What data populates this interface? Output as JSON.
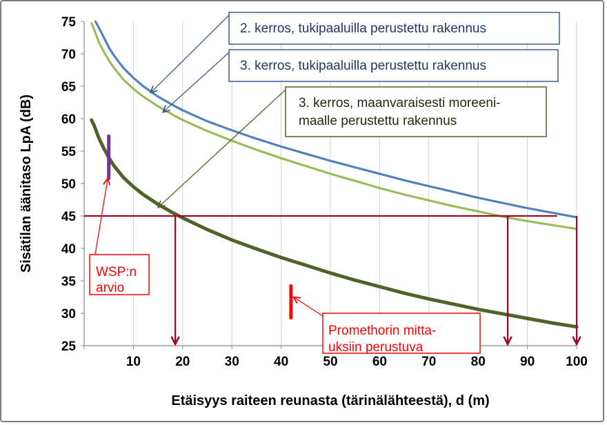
{
  "chart_data": {
    "type": "line",
    "xlabel": "Etäisyys raiteen reunasta (tärinälähteestä), d (m)",
    "ylabel": "Sisätilan äänitaso LpA (dB)",
    "xlim": [
      0,
      100
    ],
    "ylim": [
      25,
      75
    ],
    "x_ticks": [
      "10",
      "20",
      "30",
      "40",
      "50",
      "60",
      "70",
      "80",
      "90",
      "100"
    ],
    "y_ticks": [
      "25",
      "30",
      "35",
      "40",
      "45",
      "50",
      "55",
      "60",
      "65",
      "70",
      "75"
    ],
    "grid": "vertical",
    "series": [
      {
        "name": "2. kerros, tukipaaluilla  perustettu rakennus",
        "color": "#4f81bd",
        "x": [
          2.3,
          3,
          4,
          5,
          6,
          8,
          10,
          12,
          15,
          18,
          20,
          25,
          30,
          35,
          40,
          45,
          50,
          55,
          60,
          65,
          70,
          75,
          80,
          85,
          90,
          95,
          100
        ],
        "y": [
          75,
          74,
          72.5,
          71,
          69.8,
          67.8,
          66.3,
          65,
          63.4,
          62.1,
          61.3,
          59.6,
          58.2,
          56.9,
          55.7,
          54.6,
          53.5,
          52.5,
          51.5,
          50.5,
          49.6,
          48.7,
          47.8,
          47,
          46.2,
          45.5,
          44.8
        ]
      },
      {
        "name": "3. kerros, tukipaaluilla  perustettu rakennus",
        "color": "#9bbb59",
        "x": [
          1.5,
          2,
          3,
          4,
          5,
          6,
          8,
          10,
          12,
          15,
          18,
          20,
          25,
          30,
          35,
          40,
          45,
          50,
          55,
          60,
          65,
          70,
          75,
          80,
          85,
          90,
          95,
          100
        ],
        "y": [
          74.7,
          73.8,
          71.8,
          70.3,
          69,
          67.9,
          66,
          64.6,
          63.4,
          61.9,
          60.6,
          59.8,
          58.1,
          56.6,
          55.2,
          53.9,
          52.7,
          51.5,
          50.4,
          49.3,
          48.3,
          47.4,
          46.5,
          45.7,
          44.9,
          44.2,
          43.6,
          43
        ]
      },
      {
        "name": "3. kerros, maanvaraisesti moreeni-maalle perustettu rakennus",
        "color": "#4f6228",
        "x": [
          1.5,
          2,
          3,
          4,
          5,
          6,
          8,
          10,
          12,
          15,
          18,
          20,
          25,
          30,
          35,
          40,
          45,
          50,
          55,
          60,
          65,
          70,
          75,
          80,
          85,
          90,
          95,
          100
        ],
        "y": [
          59.8,
          59,
          57,
          55.4,
          54,
          52.8,
          50.9,
          49.5,
          48.3,
          46.8,
          45.5,
          44.7,
          42.9,
          41.3,
          39.9,
          38.6,
          37.4,
          36.2,
          35.1,
          34.1,
          33.1,
          32.2,
          31.4,
          30.6,
          29.9,
          29.2,
          28.5,
          27.9
        ]
      }
    ],
    "reference_lines": {
      "color": "#a50021",
      "horizontal": {
        "y": 45,
        "x_from": 0,
        "x_to": 96
      },
      "drop_arrows": [
        {
          "x": 18.5,
          "y_from": 45,
          "y_to": 25
        },
        {
          "x": 86,
          "y_from": 45,
          "y_to": 25
        },
        {
          "x": 100,
          "y_from": 45,
          "y_to": 25
        }
      ]
    },
    "markers": [
      {
        "label": "WSP:n arvio",
        "color": "#7030a0",
        "x": 5,
        "y_from": 50.8,
        "y_to": 57.3
      },
      {
        "label": "Promethorin mitta-uksiin perustuva",
        "color": "#ff0000",
        "x": 42,
        "y_from": 29.3,
        "y_to": 34.2
      }
    ],
    "annotations": [
      {
        "lines": [
          "2. kerros, tukipaaluilla  perustettu rakennus"
        ],
        "border": "#385d8a",
        "text_color": "#1f3864",
        "points_to": [
          13.5,
          64
        ]
      },
      {
        "lines": [
          "3. kerros, tukipaaluilla  perustettu rakennus"
        ],
        "border": "#385d8a",
        "text_color": "#1f3864",
        "points_to": [
          16,
          61
        ]
      },
      {
        "lines": [
          "3. kerros, maanvaraisesti moreeni-",
          "maalle perustettu rakennus"
        ],
        "border": "#4f6228",
        "text_color": "#1e2a0e",
        "points_to": [
          15,
          46.3
        ]
      },
      {
        "lines": [
          "WSP:n",
          "arvio"
        ],
        "border": "#ff0000",
        "text_color": "#ff0000",
        "points_to": [
          4.8,
          50.8
        ]
      },
      {
        "lines": [
          "Promethorin mitta-",
          "uksiin perustuva"
        ],
        "border": "#ff0000",
        "text_color": "#ff0000",
        "points_to": [
          42.5,
          32.5
        ]
      }
    ]
  }
}
